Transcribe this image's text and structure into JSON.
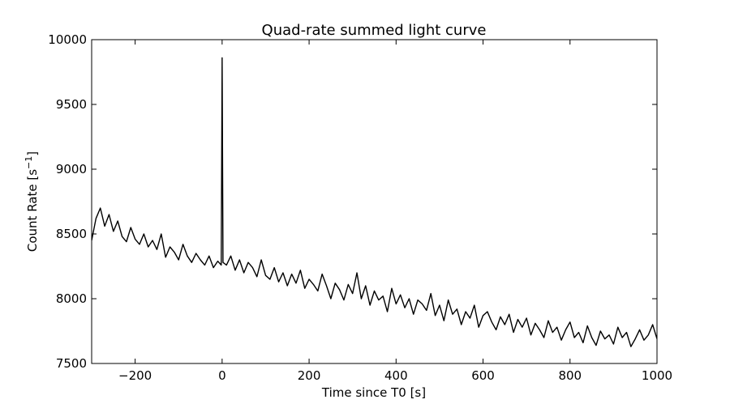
{
  "chart_data": {
    "type": "line",
    "title": "Quad-rate summed light curve",
    "xlabel": "Time since T0 [s]",
    "ylabel_parts": {
      "before": "Count Rate [s",
      "superscript": "−1",
      "after": "]"
    },
    "xlim": [
      -300,
      1000
    ],
    "ylim": [
      7500,
      10000
    ],
    "grid": false,
    "legend": "none",
    "x_ticks": [
      -200,
      0,
      200,
      400,
      600,
      800,
      1000
    ],
    "x_tick_labels": [
      "−200",
      "0",
      "200",
      "400",
      "600",
      "800",
      "1000"
    ],
    "y_ticks": [
      7500,
      8000,
      8500,
      9000,
      9500,
      10000
    ],
    "y_tick_labels": [
      "7500",
      "8000",
      "8500",
      "9000",
      "9500",
      "10000"
    ],
    "line_color": "#000000",
    "series": [
      {
        "x": [
          -300,
          -290,
          -280,
          -270,
          -260,
          -250,
          -240,
          -230,
          -220,
          -210,
          -200,
          -190,
          -180,
          -170,
          -160,
          -150,
          -140,
          -130,
          -120,
          -110,
          -100,
          -90,
          -80,
          -70,
          -60,
          -50,
          -40,
          -30,
          -20,
          -10,
          -2,
          0,
          2,
          10,
          20,
          30,
          40,
          50,
          60,
          70,
          80,
          90,
          100,
          110,
          120,
          130,
          140,
          150,
          160,
          170,
          180,
          190,
          200,
          210,
          220,
          230,
          240,
          250,
          260,
          270,
          280,
          290,
          300,
          310,
          320,
          330,
          340,
          350,
          360,
          370,
          380,
          390,
          400,
          410,
          420,
          430,
          440,
          450,
          460,
          470,
          480,
          490,
          500,
          510,
          520,
          530,
          540,
          550,
          560,
          570,
          580,
          590,
          600,
          610,
          620,
          630,
          640,
          650,
          660,
          670,
          680,
          690,
          700,
          710,
          720,
          730,
          740,
          750,
          760,
          770,
          780,
          790,
          800,
          810,
          820,
          830,
          840,
          850,
          860,
          870,
          880,
          890,
          900,
          910,
          920,
          930,
          940,
          950,
          960,
          970,
          980,
          990,
          1000
        ],
        "y": [
          8450,
          8620,
          8700,
          8560,
          8650,
          8520,
          8600,
          8480,
          8440,
          8550,
          8460,
          8420,
          8500,
          8400,
          8450,
          8380,
          8500,
          8320,
          8400,
          8360,
          8300,
          8420,
          8330,
          8280,
          8350,
          8300,
          8260,
          8330,
          8240,
          8290,
          8260,
          9860,
          8280,
          8260,
          8330,
          8220,
          8300,
          8200,
          8280,
          8240,
          8170,
          8300,
          8180,
          8150,
          8240,
          8130,
          8200,
          8100,
          8190,
          8120,
          8220,
          8080,
          8150,
          8110,
          8060,
          8190,
          8100,
          8000,
          8120,
          8070,
          7990,
          8110,
          8040,
          8200,
          8000,
          8100,
          7950,
          8060,
          7990,
          8020,
          7900,
          8080,
          7960,
          8030,
          7930,
          8000,
          7880,
          7990,
          7960,
          7910,
          8040,
          7870,
          7950,
          7830,
          7990,
          7880,
          7920,
          7800,
          7900,
          7850,
          7950,
          7780,
          7870,
          7900,
          7820,
          7760,
          7860,
          7800,
          7880,
          7740,
          7840,
          7780,
          7850,
          7720,
          7810,
          7760,
          7700,
          7830,
          7740,
          7780,
          7680,
          7760,
          7820,
          7700,
          7740,
          7660,
          7790,
          7700,
          7640,
          7750,
          7690,
          7720,
          7650,
          7780,
          7700,
          7740,
          7630,
          7690,
          7760,
          7680,
          7720,
          7800,
          7690
        ]
      }
    ]
  }
}
